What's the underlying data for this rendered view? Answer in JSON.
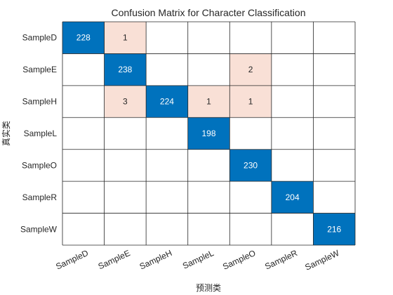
{
  "colors": {
    "diagonal": "#0072BD",
    "off_diagonal": "#F9E0D6",
    "empty": "#FFFFFF",
    "grid": "#262626",
    "text_on_dark": "#FFFFFF",
    "text_on_light": "#262626"
  },
  "chart_data": {
    "type": "heatmap",
    "title": "Confusion Matrix for Character Classification",
    "xlabel": "预测类",
    "ylabel": "真实类",
    "row_labels": [
      "SampleD",
      "SampleE",
      "SampleH",
      "SampleL",
      "SampleO",
      "SampleR",
      "SampleW"
    ],
    "col_labels": [
      "SampleD",
      "SampleE",
      "SampleH",
      "SampleL",
      "SampleO",
      "SampleR",
      "SampleW"
    ],
    "matrix": [
      [
        228,
        1,
        0,
        0,
        0,
        0,
        0
      ],
      [
        0,
        238,
        0,
        0,
        2,
        0,
        0
      ],
      [
        0,
        3,
        224,
        1,
        1,
        0,
        0
      ],
      [
        0,
        0,
        0,
        198,
        0,
        0,
        0
      ],
      [
        0,
        0,
        0,
        0,
        230,
        0,
        0
      ],
      [
        0,
        0,
        0,
        0,
        0,
        204,
        0
      ],
      [
        0,
        0,
        0,
        0,
        0,
        0,
        216
      ]
    ],
    "zero_cells_blank": true
  }
}
